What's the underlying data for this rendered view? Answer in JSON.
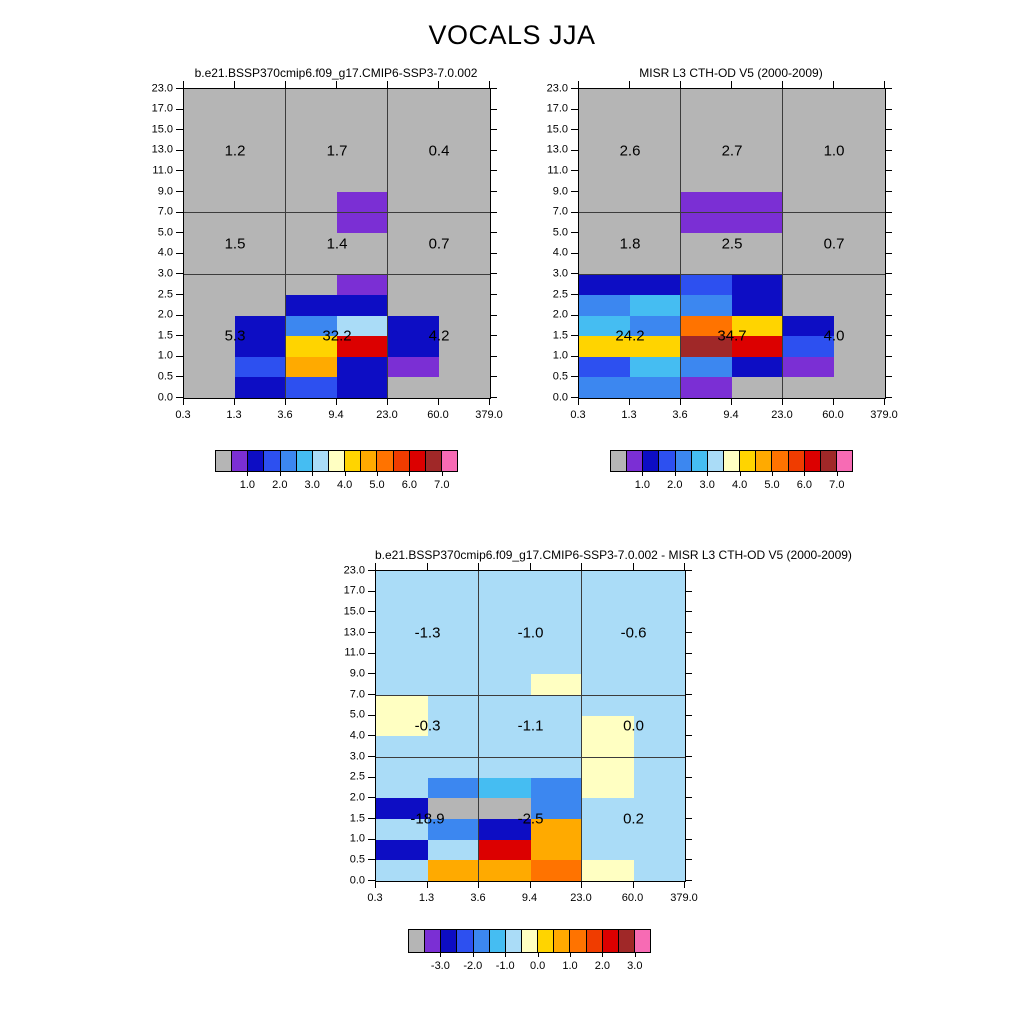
{
  "title": "VOCALS JJA",
  "palette": [
    "#b5b5b5",
    "#7b2fd4",
    "#0d0dc4",
    "#2d50f0",
    "#3c87f0",
    "#45bdf2",
    "#aadcf7",
    "#ffffc2",
    "#ffd400",
    "#ffaa00",
    "#ff7300",
    "#f03c00",
    "#dc0000",
    "#a02828",
    "#f76bb4"
  ],
  "chart_data": [
    {
      "type": "heatmap",
      "title": "b.e21.BSSP370cmip6.f09_g17.CMIP6-SSP3-7.0.002",
      "x_ticks": [
        "0.3",
        "1.3",
        "3.6",
        "9.4",
        "23.0",
        "60.0",
        "379.0"
      ],
      "y_ticks": [
        "23.0",
        "17.0",
        "15.0",
        "13.0",
        "11.0",
        "9.0",
        "7.0",
        "5.0",
        "4.0",
        "3.0",
        "2.5",
        "2.0",
        "1.5",
        "1.0",
        "0.5",
        "0.0"
      ],
      "grid_color_index": [
        [
          0,
          0,
          0,
          0,
          0,
          0
        ],
        [
          0,
          0,
          0,
          0,
          0,
          0
        ],
        [
          0,
          0,
          0,
          0,
          0,
          0
        ],
        [
          0,
          0,
          0,
          0,
          0,
          0
        ],
        [
          0,
          0,
          0,
          0,
          0,
          0
        ],
        [
          0,
          0,
          0,
          1,
          0,
          0
        ],
        [
          0,
          0,
          0,
          1,
          0,
          0
        ],
        [
          0,
          0,
          0,
          0,
          0,
          0
        ],
        [
          0,
          0,
          0,
          0,
          0,
          0
        ],
        [
          0,
          0,
          0,
          1,
          0,
          0
        ],
        [
          0,
          0,
          2,
          2,
          0,
          0
        ],
        [
          0,
          2,
          4,
          6,
          2,
          0
        ],
        [
          0,
          2,
          8,
          12,
          2,
          0
        ],
        [
          0,
          3,
          9,
          2,
          1,
          0
        ],
        [
          0,
          2,
          3,
          2,
          0,
          0
        ]
      ],
      "region_values": [
        [
          "1.2",
          "1.7",
          "0.4"
        ],
        [
          "1.5",
          "1.4",
          "0.7"
        ],
        [
          "5.3",
          "32.2",
          "4.2"
        ]
      ],
      "colorbar_labels": [
        "1.0",
        "2.0",
        "3.0",
        "4.0",
        "5.0",
        "6.0",
        "7.0"
      ]
    },
    {
      "type": "heatmap",
      "title": "MISR L3 CTH-OD V5 (2000-2009)",
      "x_ticks": [
        "0.3",
        "1.3",
        "3.6",
        "9.4",
        "23.0",
        "60.0",
        "379.0"
      ],
      "y_ticks": [
        "23.0",
        "17.0",
        "15.0",
        "13.0",
        "11.0",
        "9.0",
        "7.0",
        "5.0",
        "4.0",
        "3.0",
        "2.5",
        "2.0",
        "1.5",
        "1.0",
        "0.5",
        "0.0"
      ],
      "grid_color_index": [
        [
          0,
          0,
          0,
          0,
          0,
          0
        ],
        [
          0,
          0,
          0,
          0,
          0,
          0
        ],
        [
          0,
          0,
          0,
          0,
          0,
          0
        ],
        [
          0,
          0,
          0,
          0,
          0,
          0
        ],
        [
          0,
          0,
          0,
          0,
          0,
          0
        ],
        [
          0,
          0,
          1,
          1,
          0,
          0
        ],
        [
          0,
          0,
          1,
          1,
          0,
          0
        ],
        [
          0,
          0,
          0,
          0,
          0,
          0
        ],
        [
          0,
          0,
          0,
          0,
          0,
          0
        ],
        [
          2,
          2,
          3,
          2,
          0,
          0
        ],
        [
          4,
          5,
          4,
          2,
          0,
          0
        ],
        [
          5,
          4,
          10,
          8,
          2,
          0
        ],
        [
          8,
          8,
          13,
          12,
          3,
          0
        ],
        [
          3,
          5,
          4,
          2,
          1,
          0
        ],
        [
          4,
          4,
          1,
          0,
          0,
          0
        ]
      ],
      "region_values": [
        [
          "2.6",
          "2.7",
          "1.0"
        ],
        [
          "1.8",
          "2.5",
          "0.7"
        ],
        [
          "24.2",
          "34.7",
          "4.0"
        ]
      ],
      "colorbar_labels": [
        "1.0",
        "2.0",
        "3.0",
        "4.0",
        "5.0",
        "6.0",
        "7.0"
      ]
    },
    {
      "type": "heatmap",
      "title": "b.e21.BSSP370cmip6.f09_g17.CMIP6-SSP3-7.0.002 - MISR L3 CTH-OD V5 (2000-2009)",
      "x_ticks": [
        "0.3",
        "1.3",
        "3.6",
        "9.4",
        "23.0",
        "60.0",
        "379.0"
      ],
      "y_ticks": [
        "23.0",
        "17.0",
        "15.0",
        "13.0",
        "11.0",
        "9.0",
        "7.0",
        "5.0",
        "4.0",
        "3.0",
        "2.5",
        "2.0",
        "1.5",
        "1.0",
        "0.5",
        "0.0"
      ],
      "grid_color_index": [
        [
          6,
          6,
          6,
          6,
          6,
          6
        ],
        [
          6,
          6,
          6,
          6,
          6,
          6
        ],
        [
          6,
          6,
          6,
          6,
          6,
          6
        ],
        [
          6,
          6,
          6,
          6,
          6,
          6
        ],
        [
          6,
          6,
          6,
          6,
          6,
          6
        ],
        [
          6,
          6,
          6,
          7,
          6,
          6
        ],
        [
          7,
          6,
          6,
          6,
          6,
          6
        ],
        [
          7,
          6,
          6,
          6,
          7,
          6
        ],
        [
          6,
          6,
          6,
          6,
          7,
          6
        ],
        [
          6,
          6,
          6,
          6,
          7,
          6
        ],
        [
          6,
          4,
          5,
          4,
          7,
          6
        ],
        [
          2,
          0,
          0,
          4,
          6,
          6
        ],
        [
          6,
          4,
          2,
          9,
          6,
          6
        ],
        [
          2,
          6,
          12,
          9,
          6,
          6
        ],
        [
          6,
          9,
          9,
          10,
          7,
          6
        ]
      ],
      "region_values": [
        [
          "-1.3",
          "-1.0",
          "-0.6"
        ],
        [
          "-0.3",
          "-1.1",
          "0.0"
        ],
        [
          "-18.9",
          "-2.5",
          "0.2"
        ]
      ],
      "colorbar_labels": [
        "-3.0",
        "-2.0",
        "-1.0",
        "0.0",
        "1.0",
        "2.0",
        "3.0"
      ]
    }
  ]
}
